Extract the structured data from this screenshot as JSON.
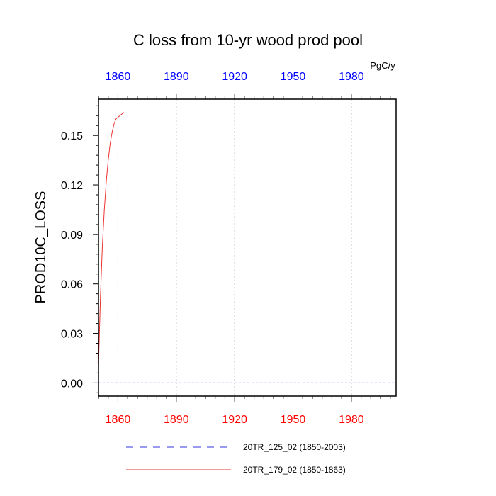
{
  "chart_data": {
    "type": "line",
    "title": "C loss from 10-yr wood prod pool",
    "ylabel": "PROD10C_LOSS",
    "units": "PgC/y",
    "xlim": [
      1850,
      2003
    ],
    "ylim": [
      -0.008,
      0.172
    ],
    "x_ticks": [
      1860,
      1890,
      1920,
      1950,
      1980
    ],
    "x_tick_labels": [
      "1860",
      "1890",
      "1920",
      "1950",
      "1980"
    ],
    "y_ticks": [
      0.0,
      0.03,
      0.06,
      0.09,
      0.12,
      0.15
    ],
    "y_tick_labels": [
      "0.00",
      "0.03",
      "0.06",
      "0.09",
      "0.12",
      "0.15"
    ],
    "colors": {
      "bottom_ticks": "#ff0000",
      "top_ticks": "#0000ff",
      "grid": "#aaaaaa"
    },
    "legend_position": "bottom",
    "series": [
      {
        "name": "20TR_125_02 (1850-2003)",
        "color": "#3333dd",
        "dash": "dashed",
        "x": [
          1850,
          2003
        ],
        "values": [
          0.0,
          0.0
        ]
      },
      {
        "name": "20TR_179_02 (1850-1863)",
        "color": "#ee3333",
        "dash": "solid",
        "x": [
          1850,
          1851,
          1852,
          1853,
          1854,
          1855,
          1856,
          1857,
          1858,
          1859,
          1860,
          1861,
          1862,
          1863
        ],
        "values": [
          0.01,
          0.052,
          0.083,
          0.105,
          0.122,
          0.135,
          0.145,
          0.152,
          0.157,
          0.16,
          0.161,
          0.162,
          0.163,
          0.164
        ]
      }
    ]
  }
}
